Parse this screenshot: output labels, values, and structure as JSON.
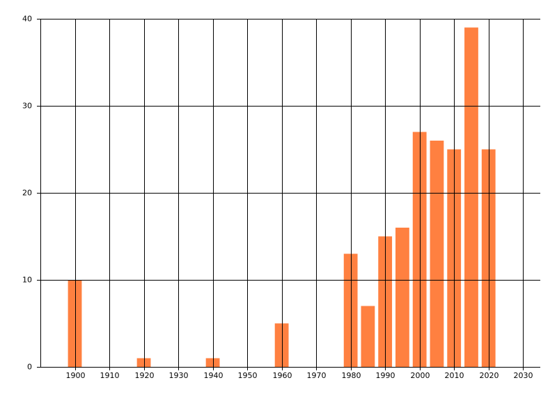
{
  "chart_data": {
    "type": "bar",
    "x": [
      1900,
      1920,
      1940,
      1960,
      1980,
      1985,
      1990,
      1995,
      2000,
      2005,
      2010,
      2015,
      2020
    ],
    "values": [
      10,
      1,
      1,
      5,
      13,
      7,
      15,
      16,
      27,
      26,
      25,
      39,
      25
    ],
    "color": "#ff8040",
    "xlim": [
      1890,
      2035
    ],
    "xticks": [
      1900,
      1910,
      1920,
      1930,
      1940,
      1950,
      1960,
      1970,
      1980,
      1990,
      2000,
      2010,
      2020,
      2030
    ],
    "ylim": [
      0,
      40
    ],
    "yticks": [
      0,
      10,
      20,
      30,
      40
    ],
    "grid": true
  }
}
